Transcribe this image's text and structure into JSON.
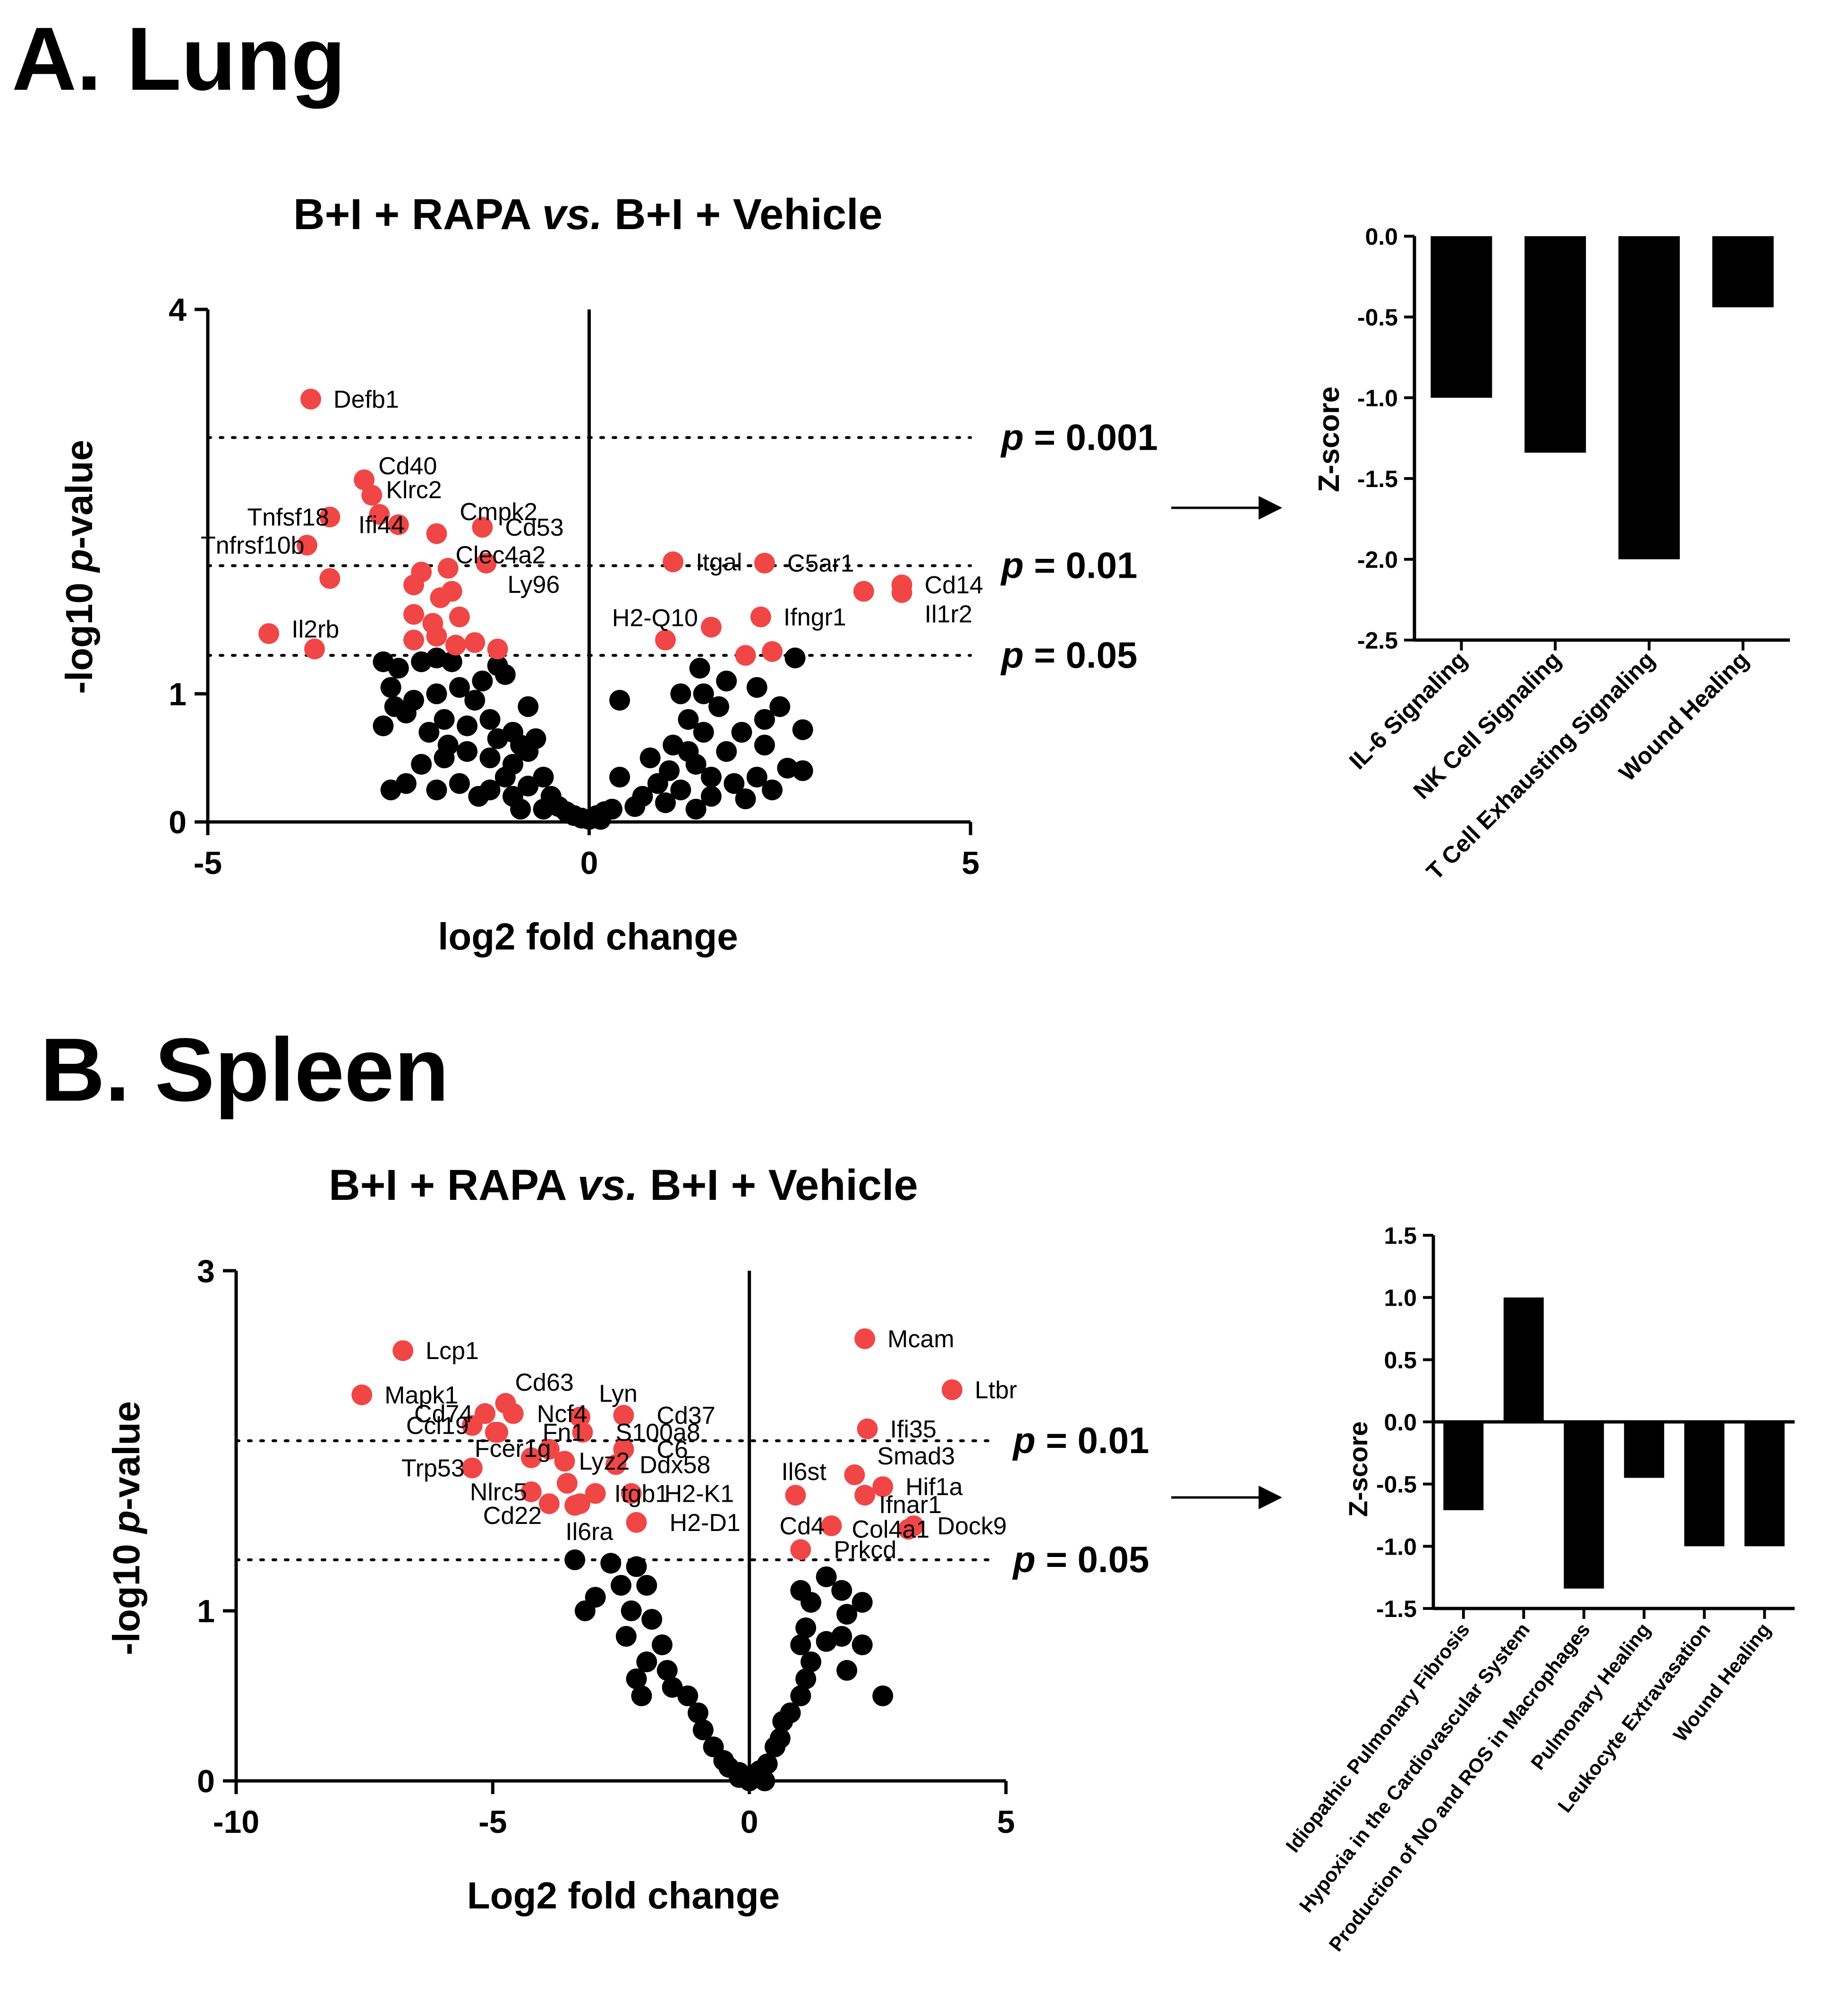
{
  "panels": [
    {
      "title": "A. Lung",
      "plot_title": "B+I + RAPA vs. B+I + Vehicle",
      "plot_title_parts": [
        "B+I + RAPA ",
        "vs.",
        " B+I + Vehicle"
      ]
    },
    {
      "title": "B. Spleen",
      "plot_title": "B+I + RAPA vs. B+I + Vehicle",
      "plot_title_parts": [
        "B+I + RAPA ",
        "vs.",
        " B+I + Vehicle"
      ]
    }
  ],
  "colors": {
    "significant": "#f04646",
    "nonsignificant": "#000000",
    "bar": "#000000"
  },
  "chart_data": [
    {
      "id": "lung_volcano",
      "type": "scatter",
      "title": "B+I + RAPA vs. B+I + Vehicle",
      "xlabel": "log2 fold change",
      "ylabel_parts": [
        "-log10 ",
        "p",
        "-value"
      ],
      "xlim": [
        -5,
        5
      ],
      "ylim": [
        0,
        4
      ],
      "xticks": [
        -5,
        0,
        5
      ],
      "yticks": [
        0,
        1,
        4
      ],
      "thresholds": [
        {
          "y": 3.0,
          "label_p": "p",
          "label_rest": " = 0.001"
        },
        {
          "y": 2.0,
          "label_p": "p",
          "label_rest": " = 0.01"
        },
        {
          "y": 1.3,
          "label_p": "p",
          "label_rest": " = 0.05"
        }
      ],
      "labeled_points": [
        {
          "gene": "Defb1",
          "x": -3.65,
          "y": 3.3,
          "dx": 18,
          "dy": 0
        },
        {
          "gene": "Cd40",
          "x": -2.95,
          "y": 2.67,
          "dx": 0,
          "dy": -30
        },
        {
          "gene": "Klrc2",
          "x": -2.85,
          "y": 2.55,
          "dx": 0,
          "dy": -12
        },
        {
          "gene": "Cmpk2",
          "x": -2.75,
          "y": 2.4,
          "dx": 140,
          "dy": -6
        },
        {
          "gene": "Cd53",
          "x": -1.4,
          "y": 2.3,
          "dx": 18,
          "dy": 0
        },
        {
          "gene": "Tnfsf18",
          "x": -3.4,
          "y": 2.38,
          "dx": -205,
          "dy": 0
        },
        {
          "gene": "Ifi44",
          "x": -2.5,
          "y": 2.32,
          "dx": -115,
          "dy": 0
        },
        {
          "gene": "Tnfrsf10b",
          "x": -3.7,
          "y": 2.16,
          "dx": -255,
          "dy": 0
        },
        {
          "gene": "Clec4a2",
          "x": -2.0,
          "y": 2.25,
          "dx": 10,
          "dy": 45
        },
        {
          "gene": "Ly96",
          "x": -1.35,
          "y": 2.02,
          "dx": 15,
          "dy": 45
        },
        {
          "gene": "Itgal",
          "x": 1.1,
          "y": 2.03,
          "dx": 18,
          "dy": 0
        },
        {
          "gene": "C5ar1",
          "x": 2.3,
          "y": 2.02,
          "dx": 18,
          "dy": 0
        },
        {
          "gene": "Cd14",
          "x": 4.1,
          "y": 1.85,
          "dx": 18,
          "dy": 0
        },
        {
          "gene": "Il1r2",
          "x": 4.1,
          "y": 1.79,
          "dx": 18,
          "dy": 45
        },
        {
          "gene": "H2-Q10",
          "x": 1.6,
          "y": 1.52,
          "dx": -240,
          "dy": -20
        },
        {
          "gene": "Ifngr1",
          "x": 2.25,
          "y": 1.6,
          "dx": 18,
          "dy": 0
        },
        {
          "gene": "Il2rb",
          "x": -4.2,
          "y": 1.47,
          "dx": 18,
          "dy": -10
        },
        {
          "gene": "unlabeled",
          "x": -3.6,
          "y": 1.35,
          "dx": 0,
          "dy": 0
        },
        {
          "gene": "unlabeled",
          "x": 3.6,
          "y": 1.8,
          "dx": 0,
          "dy": 0
        },
        {
          "gene": "unlabeled",
          "x": 1.0,
          "y": 1.42,
          "dx": 0,
          "dy": 0
        },
        {
          "gene": "unlabeled",
          "x": -3.4,
          "y": 1.9,
          "dx": 0,
          "dy": 0
        },
        {
          "gene": "unlabeled",
          "x": 2.4,
          "y": 1.33,
          "dx": 0,
          "dy": 0
        },
        {
          "gene": "unlabeled",
          "x": 2.05,
          "y": 1.3,
          "dx": 0,
          "dy": 0
        },
        {
          "gene": "unlabeled",
          "x": -1.2,
          "y": 1.35,
          "dx": 0,
          "dy": 0
        },
        {
          "gene": "unlabeled",
          "x": -2.3,
          "y": 1.85,
          "dx": 0,
          "dy": 0
        },
        {
          "gene": "unlabeled",
          "x": -1.95,
          "y": 1.75,
          "dx": 0,
          "dy": 0
        },
        {
          "gene": "unlabeled",
          "x": -1.7,
          "y": 1.6,
          "dx": 0,
          "dy": 0
        },
        {
          "gene": "unlabeled",
          "x": -2.3,
          "y": 1.62,
          "dx": 0,
          "dy": 0
        },
        {
          "gene": "unlabeled",
          "x": -1.5,
          "y": 1.4,
          "dx": 0,
          "dy": 0
        },
        {
          "gene": "unlabeled",
          "x": -2.0,
          "y": 1.45,
          "dx": 0,
          "dy": 0
        },
        {
          "gene": "unlabeled",
          "x": -2.3,
          "y": 1.42,
          "dx": 0,
          "dy": 0
        },
        {
          "gene": "unlabeled",
          "x": -1.75,
          "y": 1.38,
          "dx": 0,
          "dy": 0
        },
        {
          "gene": "unlabeled",
          "x": -1.85,
          "y": 1.98,
          "dx": 0,
          "dy": 0
        },
        {
          "gene": "unlabeled",
          "x": -2.2,
          "y": 1.95,
          "dx": 0,
          "dy": 0
        },
        {
          "gene": "unlabeled",
          "x": -1.8,
          "y": 1.8,
          "dx": 0,
          "dy": 0
        },
        {
          "gene": "unlabeled",
          "x": -2.05,
          "y": 1.55,
          "dx": 0,
          "dy": 0
        }
      ],
      "nonsignificant_points": [
        [
          -2.7,
          1.25
        ],
        [
          -2.5,
          1.2
        ],
        [
          -2.2,
          1.25
        ],
        [
          -2.0,
          1.28
        ],
        [
          -1.8,
          1.25
        ],
        [
          -1.2,
          1.22
        ],
        [
          -2.6,
          1.05
        ],
        [
          -2.3,
          0.95
        ],
        [
          -2.0,
          1.0
        ],
        [
          -1.7,
          1.05
        ],
        [
          -1.4,
          1.1
        ],
        [
          -1.1,
          1.15
        ],
        [
          -2.7,
          0.75
        ],
        [
          -2.4,
          0.85
        ],
        [
          -2.1,
          0.7
        ],
        [
          -1.9,
          0.8
        ],
        [
          -1.6,
          0.75
        ],
        [
          -1.3,
          0.8
        ],
        [
          -1.0,
          0.7
        ],
        [
          -0.8,
          0.9
        ],
        [
          -2.2,
          0.45
        ],
        [
          -1.9,
          0.5
        ],
        [
          -1.6,
          0.55
        ],
        [
          -1.3,
          0.5
        ],
        [
          -1.0,
          0.45
        ],
        [
          -0.8,
          0.55
        ],
        [
          -2.6,
          0.25
        ],
        [
          -2.4,
          0.3
        ],
        [
          -2.0,
          0.25
        ],
        [
          -1.7,
          0.3
        ],
        [
          -1.3,
          0.25
        ],
        [
          -1.0,
          0.2
        ],
        [
          -0.8,
          0.28
        ],
        [
          -0.6,
          0.35
        ],
        [
          -0.5,
          0.2
        ],
        [
          -0.4,
          0.12
        ],
        [
          -0.3,
          0.08
        ],
        [
          -0.2,
          0.05
        ],
        [
          -0.1,
          0.03
        ],
        [
          0.0,
          0.02
        ],
        [
          0.1,
          0.05
        ],
        [
          0.2,
          0.08
        ],
        [
          0.3,
          0.1
        ],
        [
          0.15,
          0.02
        ],
        [
          -0.6,
          0.1
        ],
        [
          -0.9,
          0.1
        ],
        [
          -1.1,
          0.35
        ],
        [
          -0.9,
          0.6
        ],
        [
          -0.7,
          0.65
        ],
        [
          -1.2,
          0.65
        ],
        [
          -1.5,
          0.95
        ],
        [
          -1.85,
          0.6
        ],
        [
          -2.55,
          0.9
        ],
        [
          -1.45,
          0.2
        ],
        [
          0.4,
          0.35
        ],
        [
          0.7,
          0.2
        ],
        [
          0.9,
          0.3
        ],
        [
          1.0,
          0.15
        ],
        [
          1.2,
          0.25
        ],
        [
          1.4,
          0.45
        ],
        [
          1.1,
          0.6
        ],
        [
          1.3,
          0.8
        ],
        [
          1.5,
          0.7
        ],
        [
          1.7,
          0.9
        ],
        [
          1.5,
          1.0
        ],
        [
          1.3,
          0.55
        ],
        [
          1.6,
          0.2
        ],
        [
          1.9,
          0.3
        ],
        [
          2.2,
          0.35
        ],
        [
          2.4,
          0.25
        ],
        [
          2.6,
          0.42
        ],
        [
          2.8,
          0.4
        ],
        [
          1.8,
          0.55
        ],
        [
          2.0,
          0.7
        ],
        [
          2.3,
          0.8
        ],
        [
          2.5,
          0.9
        ],
        [
          2.8,
          0.72
        ],
        [
          2.7,
          1.28
        ],
        [
          0.4,
          0.95
        ],
        [
          0.8,
          0.5
        ],
        [
          1.2,
          1.0
        ],
        [
          1.45,
          1.2
        ],
        [
          1.8,
          1.1
        ],
        [
          2.2,
          1.05
        ],
        [
          1.6,
          0.35
        ],
        [
          2.05,
          0.18
        ],
        [
          0.6,
          0.12
        ],
        [
          1.4,
          0.1
        ],
        [
          2.3,
          0.6
        ],
        [
          1.05,
          0.4
        ]
      ]
    },
    {
      "id": "lung_zscore",
      "type": "bar",
      "ylabel": "Z-score",
      "ylim": [
        -2.5,
        0.0
      ],
      "yticks": [
        0.0,
        -0.5,
        -1.0,
        -1.5,
        -2.0,
        -2.5
      ],
      "categories": [
        "IL-6 Signaling",
        "NK Cell Signaling",
        "T Cell Exhausting Signaling",
        "Wound Healing"
      ],
      "values": [
        -1.0,
        -1.34,
        -2.0,
        -0.44
      ]
    },
    {
      "id": "spleen_volcano",
      "type": "scatter",
      "title": "B+I + RAPA vs. B+I + Vehicle",
      "xlabel": "Log2 fold change",
      "ylabel_parts": [
        "-log10 ",
        "p",
        "-value"
      ],
      "xlim": [
        -10,
        5
      ],
      "ylim": [
        0,
        3
      ],
      "xticks": [
        -10,
        -5,
        0,
        5
      ],
      "yticks": [
        0,
        1,
        3
      ],
      "thresholds": [
        {
          "y": 2.0,
          "label_p": "p",
          "label_rest": " = 0.01"
        },
        {
          "y": 1.3,
          "label_p": "p",
          "label_rest": " = 0.05"
        }
      ],
      "labeled_points": [
        {
          "gene": "Lcp1",
          "x": -6.75,
          "y": 2.53,
          "dx": 18,
          "dy": 0
        },
        {
          "gene": "Mapk1",
          "x": -7.55,
          "y": 2.27,
          "dx": 18,
          "dy": 0
        },
        {
          "gene": "Cd63",
          "x": -4.75,
          "y": 2.22,
          "dx": -10,
          "dy": -45
        },
        {
          "gene": "Lyn",
          "x": -3.3,
          "y": 2.14,
          "dx": 10,
          "dy": -50
        },
        {
          "gene": "Cd74",
          "x": -5.15,
          "y": 2.16,
          "dx": -180,
          "dy": 0
        },
        {
          "gene": "Ncf4",
          "x": -4.6,
          "y": 2.16,
          "dx": 20,
          "dy": 0
        },
        {
          "gene": "Cd37",
          "x": -2.45,
          "y": 2.15,
          "dx": 40,
          "dy": 0
        },
        {
          "gene": "Ccl19",
          "x": -5.4,
          "y": 2.09,
          "dx": -170,
          "dy": 0
        },
        {
          "gene": "Fn1",
          "x": -4.95,
          "y": 2.05,
          "dx": 70,
          "dy": 0
        },
        {
          "gene": "S100a8",
          "x": -3.25,
          "y": 2.05,
          "dx": 40,
          "dy": 0
        },
        {
          "gene": "Fcer1g",
          "x": -4.25,
          "y": 1.9,
          "dx": -150,
          "dy": -20
        },
        {
          "gene": "C6",
          "x": -2.45,
          "y": 1.95,
          "dx": 40,
          "dy": 0
        },
        {
          "gene": "Trp53",
          "x": -5.4,
          "y": 1.84,
          "dx": -180,
          "dy": 0
        },
        {
          "gene": "Lyz2",
          "x": -3.6,
          "y": 1.88,
          "dx": 0,
          "dy": 0
        },
        {
          "gene": "Ddx58",
          "x": -2.6,
          "y": 1.86,
          "dx": 20,
          "dy": 0
        },
        {
          "gene": "Nlrc5",
          "x": -4.25,
          "y": 1.7,
          "dx": -160,
          "dy": 0
        },
        {
          "gene": "Itgb1",
          "x": -3.0,
          "y": 1.69,
          "dx": 10,
          "dy": 0
        },
        {
          "gene": "H2-K1",
          "x": -2.3,
          "y": 1.69,
          "dx": 40,
          "dy": 0
        },
        {
          "gene": "Cd22",
          "x": -3.9,
          "y": 1.63,
          "dx": -170,
          "dy": 25
        },
        {
          "gene": "H2-D1",
          "x": -2.2,
          "y": 1.52,
          "dx": 40,
          "dy": 0
        },
        {
          "gene": "Il6ra",
          "x": -3.4,
          "y": 1.62,
          "dx": -50,
          "dy": 55
        },
        {
          "gene": "Mcam",
          "x": 2.25,
          "y": 2.6,
          "dx": 18,
          "dy": 0
        },
        {
          "gene": "Ltbr",
          "x": 3.95,
          "y": 2.3,
          "dx": 18,
          "dy": 0
        },
        {
          "gene": "Ifi35",
          "x": 2.3,
          "y": 2.07,
          "dx": 18,
          "dy": 0
        },
        {
          "gene": "Smad3",
          "x": 2.05,
          "y": 1.8,
          "dx": 18,
          "dy": -40
        },
        {
          "gene": "Il6st",
          "x": 0.9,
          "y": 1.68,
          "dx": -60,
          "dy": -50
        },
        {
          "gene": "Hif1a",
          "x": 2.6,
          "y": 1.73,
          "dx": 18,
          "dy": 0
        },
        {
          "gene": "Ifnar1",
          "x": 2.25,
          "y": 1.68,
          "dx": 0,
          "dy": 20
        },
        {
          "gene": "Cd4",
          "x": 1.6,
          "y": 1.5,
          "dx": -140,
          "dy": 0
        },
        {
          "gene": "Col4a1",
          "x": 3.1,
          "y": 1.48,
          "dx": -150,
          "dy": 0
        },
        {
          "gene": "Dock9",
          "x": 3.2,
          "y": 1.5,
          "dx": 20,
          "dy": 0
        },
        {
          "gene": "Prkcd",
          "x": 1.0,
          "y": 1.36,
          "dx": 40,
          "dy": 0
        },
        {
          "gene": "unlabeled",
          "x": -3.9,
          "y": 1.95,
          "dx": 0,
          "dy": 0
        },
        {
          "gene": "unlabeled",
          "x": -4.9,
          "y": 2.05,
          "dx": 0,
          "dy": 0
        },
        {
          "gene": "unlabeled",
          "x": -3.55,
          "y": 1.75,
          "dx": 0,
          "dy": 0
        },
        {
          "gene": "unlabeled",
          "x": -3.3,
          "y": 1.63,
          "dx": 0,
          "dy": 0
        }
      ],
      "nonsignificant_points": [
        [
          -3.4,
          1.3
        ],
        [
          -2.7,
          1.28
        ],
        [
          -2.2,
          1.26
        ],
        [
          -2.5,
          1.15
        ],
        [
          -2.0,
          1.15
        ],
        [
          -3.0,
          1.08
        ],
        [
          -3.2,
          1.0
        ],
        [
          -2.3,
          1.0
        ],
        [
          -1.9,
          0.95
        ],
        [
          -2.4,
          0.85
        ],
        [
          -1.7,
          0.8
        ],
        [
          -2.0,
          0.7
        ],
        [
          -1.6,
          0.65
        ],
        [
          -2.2,
          0.6
        ],
        [
          -1.5,
          0.55
        ],
        [
          -2.1,
          0.5
        ],
        [
          -1.2,
          0.5
        ],
        [
          -1.0,
          0.4
        ],
        [
          -0.9,
          0.3
        ],
        [
          -0.7,
          0.2
        ],
        [
          -0.5,
          0.12
        ],
        [
          -0.4,
          0.08
        ],
        [
          -0.2,
          0.05
        ],
        [
          -0.1,
          0.02
        ],
        [
          0.0,
          0.0
        ],
        [
          0.1,
          0.03
        ],
        [
          0.2,
          0.06
        ],
        [
          0.35,
          0.1
        ],
        [
          0.5,
          0.2
        ],
        [
          0.6,
          0.25
        ],
        [
          0.65,
          0.35
        ],
        [
          0.8,
          0.4
        ],
        [
          1.0,
          0.5
        ],
        [
          1.1,
          0.6
        ],
        [
          1.2,
          0.7
        ],
        [
          1.0,
          0.8
        ],
        [
          1.1,
          0.9
        ],
        [
          1.5,
          0.82
        ],
        [
          1.8,
          0.85
        ],
        [
          2.2,
          0.8
        ],
        [
          2.6,
          0.5
        ],
        [
          1.9,
          0.65
        ],
        [
          1.2,
          1.05
        ],
        [
          1.5,
          1.2
        ],
        [
          1.8,
          1.12
        ],
        [
          2.2,
          1.05
        ],
        [
          1.0,
          1.12
        ],
        [
          1.9,
          0.98
        ],
        [
          -0.2,
          0.02
        ],
        [
          0.3,
          0.0
        ]
      ]
    },
    {
      "id": "spleen_zscore",
      "type": "bar",
      "ylabel": "Z-score",
      "ylim": [
        -1.5,
        1.5
      ],
      "yticks": [
        1.5,
        1.0,
        0.5,
        0.0,
        -0.5,
        -1.0,
        -1.5
      ],
      "categories": [
        "Idiopathic Pulmonary Fibrosis",
        "Hypoxia in the Cardiovascular System",
        "Production of NO and ROS in Macrophages",
        "Pulmonary Healing",
        "Leukocyte Extravasation",
        "Wound Healing"
      ],
      "values": [
        -0.71,
        1.0,
        -1.34,
        -0.45,
        -1.0,
        -1.0
      ]
    }
  ]
}
